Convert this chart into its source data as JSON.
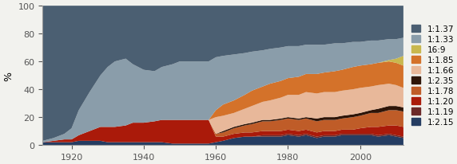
{
  "years": [
    1912,
    1915,
    1918,
    1920,
    1922,
    1925,
    1928,
    1930,
    1932,
    1935,
    1937,
    1940,
    1943,
    1945,
    1948,
    1950,
    1953,
    1955,
    1958,
    1960,
    1962,
    1965,
    1968,
    1970,
    1973,
    1975,
    1978,
    1980,
    1983,
    1985,
    1988,
    1990,
    1993,
    1995,
    1998,
    2000,
    2003,
    2005,
    2008,
    2010,
    2012
  ],
  "labels": [
    "1:1.37",
    "1:1.33",
    "16:9",
    "1:1.85",
    "1:1.66",
    "1:2.35",
    "1:1.78",
    "1:1.20",
    "1:1.19",
    "1:2.15"
  ],
  "colors": [
    "#4b5f72",
    "#8a9daa",
    "#c9b84e",
    "#d4722a",
    "#e8b89a",
    "#2e1508",
    "#bf5c28",
    "#aa1a0a",
    "#6b2828",
    "#253d62"
  ],
  "series_order": [
    "1:2.15",
    "1:1.19",
    "1:1.20",
    "1:1.78",
    "1:2.35",
    "1:1.66",
    "1:1.85",
    "16:9",
    "1:1.33",
    "1:1.37"
  ],
  "series": {
    "1:1.37": [
      97,
      95,
      92,
      88,
      75,
      62,
      50,
      44,
      40,
      38,
      42,
      46,
      47,
      44,
      42,
      40,
      40,
      40,
      40,
      37,
      36,
      35,
      34,
      33,
      32,
      31,
      30,
      29,
      29,
      28,
      28,
      28,
      27,
      27,
      26,
      26,
      25,
      25,
      24,
      24,
      23
    ],
    "1:1.33": [
      1,
      2,
      4,
      8,
      18,
      28,
      37,
      43,
      47,
      48,
      42,
      38,
      36,
      38,
      40,
      42,
      42,
      42,
      42,
      38,
      35,
      33,
      30,
      28,
      26,
      25,
      24,
      23,
      22,
      21,
      21,
      20,
      20,
      19,
      18,
      17,
      17,
      16,
      15,
      14,
      13
    ],
    "16:9": [
      0,
      0,
      0,
      0,
      0,
      0,
      0,
      0,
      0,
      0,
      0,
      0,
      0,
      0,
      0,
      0,
      0,
      0,
      0,
      0,
      0,
      0,
      0,
      0,
      0,
      0,
      0,
      0,
      0,
      0,
      0,
      0,
      0,
      0,
      0,
      0,
      0,
      0,
      1,
      3,
      7
    ],
    "1:1.85": [
      0,
      0,
      0,
      0,
      0,
      0,
      0,
      0,
      0,
      0,
      0,
      0,
      0,
      0,
      0,
      0,
      0,
      0,
      0,
      5,
      8,
      9,
      10,
      11,
      11,
      12,
      12,
      12,
      13,
      13,
      14,
      14,
      15,
      15,
      16,
      16,
      16,
      16,
      16,
      16,
      16
    ],
    "1:1.66": [
      0,
      0,
      0,
      0,
      0,
      0,
      0,
      0,
      0,
      0,
      0,
      0,
      0,
      0,
      0,
      0,
      0,
      0,
      0,
      12,
      11,
      10,
      11,
      12,
      13,
      14,
      15,
      16,
      17,
      18,
      18,
      18,
      18,
      18,
      18,
      18,
      17,
      17,
      16,
      15,
      14
    ],
    "1:2.35": [
      0,
      0,
      0,
      0,
      0,
      0,
      0,
      0,
      0,
      0,
      0,
      0,
      0,
      0,
      0,
      0,
      0,
      0,
      0,
      0,
      1,
      1,
      1,
      1,
      1,
      1,
      1,
      1,
      1,
      1,
      2,
      2,
      2,
      2,
      2,
      2,
      2,
      3,
      3,
      3,
      3
    ],
    "1:1.78": [
      0,
      0,
      0,
      0,
      0,
      0,
      0,
      0,
      0,
      0,
      0,
      0,
      0,
      0,
      0,
      0,
      0,
      0,
      0,
      2,
      3,
      4,
      5,
      6,
      7,
      7,
      8,
      8,
      8,
      8,
      8,
      8,
      8,
      8,
      9,
      9,
      10,
      10,
      11,
      11,
      11
    ],
    "1:1.20": [
      0,
      1,
      2,
      2,
      4,
      7,
      10,
      11,
      11,
      12,
      14,
      14,
      15,
      16,
      17,
      17,
      17,
      17,
      17,
      4,
      3,
      3,
      3,
      3,
      3,
      3,
      3,
      3,
      3,
      3,
      3,
      3,
      3,
      3,
      3,
      4,
      5,
      6,
      6,
      7,
      7
    ],
    "1:1.19": [
      0,
      0,
      0,
      0,
      0,
      0,
      0,
      0,
      0,
      0,
      0,
      0,
      0,
      0,
      0,
      0,
      0,
      0,
      0,
      0,
      0,
      0,
      0,
      0,
      1,
      1,
      1,
      1,
      1,
      1,
      1,
      1,
      1,
      1,
      1,
      1,
      1,
      1,
      1,
      1,
      1
    ],
    "1:2.15": [
      2,
      2,
      2,
      2,
      3,
      3,
      3,
      2,
      2,
      2,
      2,
      2,
      2,
      2,
      1,
      1,
      1,
      1,
      1,
      2,
      3,
      5,
      6,
      6,
      6,
      6,
      6,
      7,
      6,
      7,
      5,
      6,
      6,
      7,
      7,
      7,
      7,
      6,
      7,
      6,
      5
    ]
  },
  "xlim": [
    1912,
    2012
  ],
  "ylim": [
    0,
    100
  ],
  "xticks": [
    1920,
    1940,
    1960,
    1980,
    2000
  ],
  "yticks": [
    0,
    20,
    40,
    60,
    80,
    100
  ],
  "ylabel": "%",
  "bg_color": "#f2f2ee"
}
